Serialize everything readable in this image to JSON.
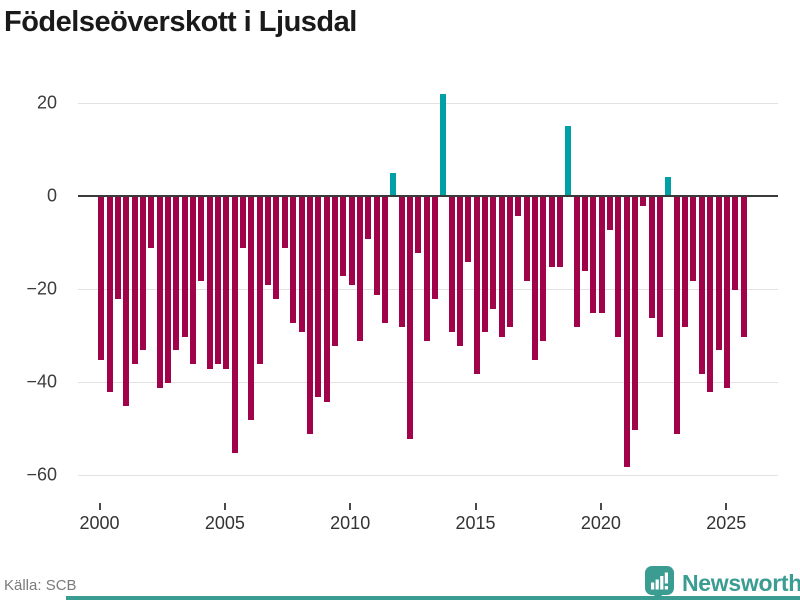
{
  "title": "Födelseöverskott i Ljusdal",
  "source": {
    "label": "Källa: SCB"
  },
  "branding": {
    "name": "Newsworthy",
    "badge_icon": "bar-chart-pin-icon",
    "color": "#3b9c92"
  },
  "colors": {
    "negative_bar": "#a1034a",
    "positive_bar": "#00a0a6",
    "grid": "#e2e2e2",
    "zero_line": "#3a3a3a",
    "axis_text": "#3c3c3c",
    "title_text": "#1a1a1a",
    "source_text": "#7a7a7a",
    "brand_teal": "#3b9c92"
  },
  "chart_data": {
    "type": "bar",
    "title": "Födelseöverskott i Ljusdal",
    "xlabel": "",
    "ylabel": "",
    "x_start_year": 2000,
    "bars_per_year": 3,
    "x_tick_years": [
      2000,
      2005,
      2010,
      2015,
      2020,
      2025
    ],
    "x_tick_labels": [
      "2000",
      "2005",
      "2010",
      "2015",
      "2020",
      "2025"
    ],
    "y_ticks": [
      20,
      0,
      -20,
      -40,
      -60
    ],
    "y_tick_labels": [
      "20",
      "0",
      "−20",
      "−40",
      "−60"
    ],
    "ylim": [
      -62,
      24
    ],
    "grid": true,
    "legend": "none",
    "values": [
      -35,
      -42,
      -22,
      -45,
      -36,
      -33,
      -11,
      -41,
      -40,
      -33,
      -30,
      -36,
      -18,
      -37,
      -36,
      -37,
      -55,
      -11,
      -48,
      -36,
      -19,
      -22,
      -11,
      -27,
      -29,
      -51,
      -43,
      -44,
      -32,
      -17,
      -19,
      -31,
      -9,
      -21,
      -27,
      5,
      -28,
      -52,
      -12,
      -31,
      -22,
      22,
      -29,
      -32,
      -14,
      -38,
      -29,
      -24,
      -30,
      -28,
      -4,
      -18,
      -35,
      -31,
      -15,
      -15,
      15,
      -28,
      -16,
      -25,
      -25,
      -7,
      -30,
      -58,
      -50,
      -2,
      -26,
      -30,
      4,
      -51,
      -28,
      -18,
      -38,
      -42,
      -33,
      -41,
      -20,
      -30
    ],
    "positive_bar_indices": [
      35,
      41,
      56,
      68
    ]
  }
}
